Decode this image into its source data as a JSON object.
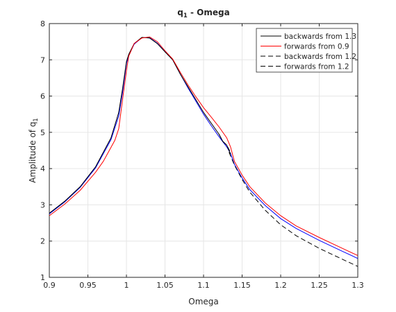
{
  "chart_data": {
    "type": "line",
    "title_main": "q",
    "title_sub": "1",
    "title_rest": " - Omega",
    "xlabel": "Omega",
    "ylabel_main": "Amplitude of q",
    "ylabel_sub": "1",
    "xlim": [
      0.9,
      1.3
    ],
    "ylim": [
      1,
      8
    ],
    "xticks": [
      "0.9",
      "0.95",
      "1",
      "1.05",
      "1.1",
      "1.15",
      "1.2",
      "1.25",
      "1.3"
    ],
    "yticks": [
      "1",
      "2",
      "3",
      "4",
      "5",
      "6",
      "7",
      "8"
    ],
    "grid": true,
    "legend_position": "top-right",
    "series": [
      {
        "name": "backwards from 1.3",
        "color": "#000000",
        "dash": "solid",
        "x": [
          0.9,
          0.92,
          0.94,
          0.96,
          0.98,
          0.99,
          0.995,
          1.0,
          1.003,
          1.01,
          1.02,
          1.03,
          1.04,
          1.05,
          1.06,
          1.07,
          1.08,
          1.09,
          1.1,
          1.11,
          1.12,
          1.125,
          1.13,
          1.135
        ],
        "y": [
          2.77,
          3.1,
          3.5,
          4.05,
          4.85,
          5.55,
          6.2,
          6.95,
          7.15,
          7.45,
          7.62,
          7.6,
          7.45,
          7.22,
          7.0,
          6.6,
          6.25,
          5.9,
          5.55,
          5.25,
          4.95,
          4.75,
          4.65,
          4.4
        ]
      },
      {
        "name": "forwards from 0.9",
        "color": "#ff0000",
        "dash": "solid",
        "x": [
          0.9,
          0.92,
          0.94,
          0.96,
          0.97,
          0.985,
          0.99,
          0.995,
          1.0,
          1.003,
          1.01,
          1.02,
          1.03,
          1.04,
          1.05,
          1.06,
          1.07,
          1.08,
          1.09,
          1.1,
          1.11,
          1.12,
          1.13,
          1.135,
          1.14,
          1.15,
          1.16,
          1.18,
          1.2,
          1.22,
          1.25,
          1.28,
          1.3
        ],
        "y": [
          2.7,
          3.02,
          3.4,
          3.9,
          4.2,
          4.78,
          5.1,
          5.9,
          6.7,
          7.1,
          7.45,
          7.6,
          7.63,
          7.5,
          7.25,
          7.02,
          6.65,
          6.3,
          5.98,
          5.68,
          5.42,
          5.15,
          4.85,
          4.6,
          4.2,
          3.82,
          3.5,
          3.05,
          2.7,
          2.42,
          2.1,
          1.8,
          1.6
        ]
      },
      {
        "name": "backwards from 1.2",
        "color": "#000000",
        "dash": "dashed",
        "x": [
          1.133,
          1.14,
          1.15,
          1.16,
          1.18,
          1.2,
          1.22,
          1.25,
          1.28,
          1.3
        ],
        "y": [
          4.45,
          4.1,
          3.7,
          3.35,
          2.85,
          2.45,
          2.15,
          1.8,
          1.5,
          1.3
        ]
      },
      {
        "name": "forwards from 1.2",
        "color": "#000000",
        "dash": "dashed",
        "x": [
          1.12,
          1.125,
          1.13,
          1.135
        ],
        "y": [
          4.95,
          4.75,
          4.65,
          4.45
        ]
      },
      {
        "name": "",
        "color": "#0000ff",
        "dash": "solid",
        "x": [
          0.9,
          0.92,
          0.94,
          0.96,
          0.98,
          0.99,
          0.995,
          1.0,
          1.003,
          1.01,
          1.02,
          1.03,
          1.04,
          1.05,
          1.06,
          1.07,
          1.08,
          1.09,
          1.1,
          1.11,
          1.12,
          1.13,
          1.135,
          1.14,
          1.15,
          1.16,
          1.18,
          1.2,
          1.22,
          1.25,
          1.28,
          1.3
        ],
        "y": [
          2.75,
          3.08,
          3.48,
          4.02,
          4.8,
          5.45,
          6.1,
          6.9,
          7.12,
          7.43,
          7.61,
          7.61,
          7.46,
          7.23,
          7.0,
          6.6,
          6.22,
          5.86,
          5.5,
          5.18,
          4.88,
          4.6,
          4.42,
          4.12,
          3.74,
          3.42,
          2.98,
          2.62,
          2.35,
          2.02,
          1.72,
          1.52
        ]
      }
    ]
  }
}
